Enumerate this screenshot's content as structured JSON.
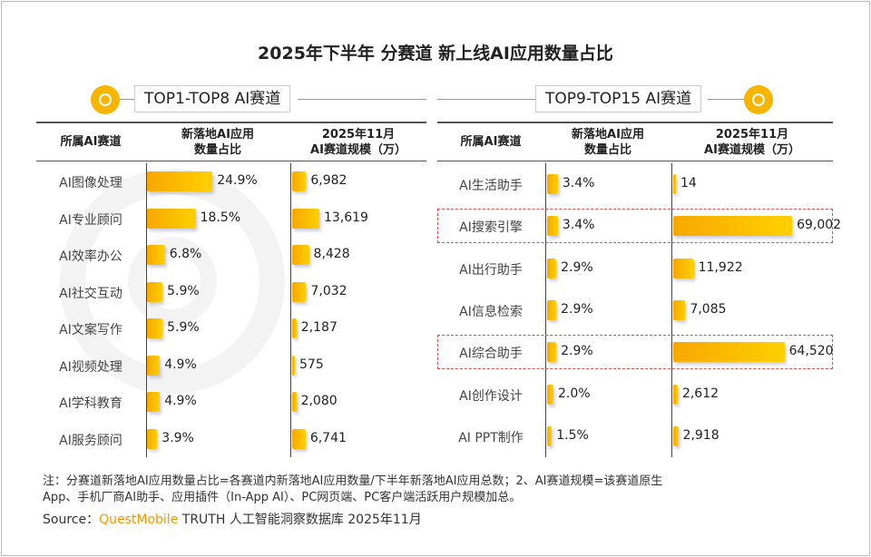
{
  "title": "2025年下半年 分赛道 新上线AI应用数量占比",
  "watermark": "QUESTMOBILE",
  "left": {
    "section": "TOP1-TOP8 AI赛道"
  },
  "right": {
    "section": "TOP9-TOP15 AI赛道"
  },
  "headers": {
    "col1": "所属AI赛道",
    "col2a": "新落地AI应用",
    "col2b": "数量占比",
    "col3a": "2025年11月",
    "col3b": "AI赛道规模（万）"
  },
  "colors": {
    "bar": "#f7b500",
    "highlight": "#d9534f",
    "brand": "#f39800"
  },
  "chart_data": {
    "type": "table",
    "left_rows": [
      {
        "name": "AI图像处理",
        "pct": 24.9,
        "pct_label": "24.9%",
        "scale": 6982,
        "scale_label": "6,982"
      },
      {
        "name": "AI专业顾问",
        "pct": 18.5,
        "pct_label": "18.5%",
        "scale": 13619,
        "scale_label": "13,619"
      },
      {
        "name": "AI效率办公",
        "pct": 6.8,
        "pct_label": "6.8%",
        "scale": 8428,
        "scale_label": "8,428"
      },
      {
        "name": "AI社交互动",
        "pct": 5.9,
        "pct_label": "5.9%",
        "scale": 7032,
        "scale_label": "7,032"
      },
      {
        "name": "AI文案写作",
        "pct": 5.9,
        "pct_label": "5.9%",
        "scale": 2187,
        "scale_label": "2,187"
      },
      {
        "name": "AI视频处理",
        "pct": 4.9,
        "pct_label": "4.9%",
        "scale": 575,
        "scale_label": "575"
      },
      {
        "name": "AI学科教育",
        "pct": 4.9,
        "pct_label": "4.9%",
        "scale": 2080,
        "scale_label": "2,080"
      },
      {
        "name": "AI服务顾问",
        "pct": 3.9,
        "pct_label": "3.9%",
        "scale": 6741,
        "scale_label": "6,741"
      }
    ],
    "right_rows": [
      {
        "name": "AI生活助手",
        "pct": 3.4,
        "pct_label": "3.4%",
        "scale": 14,
        "scale_label": "14",
        "highlight": false
      },
      {
        "name": "AI搜索引擎",
        "pct": 3.4,
        "pct_label": "3.4%",
        "scale": 69002,
        "scale_label": "69,002",
        "highlight": true
      },
      {
        "name": "AI出行助手",
        "pct": 2.9,
        "pct_label": "2.9%",
        "scale": 11922,
        "scale_label": "11,922",
        "highlight": false
      },
      {
        "name": "AI信息检索",
        "pct": 2.9,
        "pct_label": "2.9%",
        "scale": 7085,
        "scale_label": "7,085",
        "highlight": false
      },
      {
        "name": "AI综合助手",
        "pct": 2.9,
        "pct_label": "2.9%",
        "scale": 64520,
        "scale_label": "64,520",
        "highlight": true
      },
      {
        "name": "AI创作设计",
        "pct": 2.0,
        "pct_label": "2.0%",
        "scale": 2612,
        "scale_label": "2,612",
        "highlight": false
      },
      {
        "name": "AI PPT制作",
        "pct": 1.5,
        "pct_label": "1.5%",
        "scale": 2918,
        "scale_label": "2,918",
        "highlight": false
      }
    ]
  },
  "note": {
    "line1": "注：分赛道新落地AI应用数量占比=各赛道内新落地AI应用数量/下半年新落地AI应用总数；2、AI赛道规模=该赛道原生",
    "line2": "App、手机厂商AI助手、应用插件（In-App AI）、PC网页端、PC客户端活跃用户规模加总。"
  },
  "source": {
    "label": "Source：",
    "brand": "QuestMobile",
    "rest": " TRUTH 人工智能洞察数据库 2025年11月"
  }
}
